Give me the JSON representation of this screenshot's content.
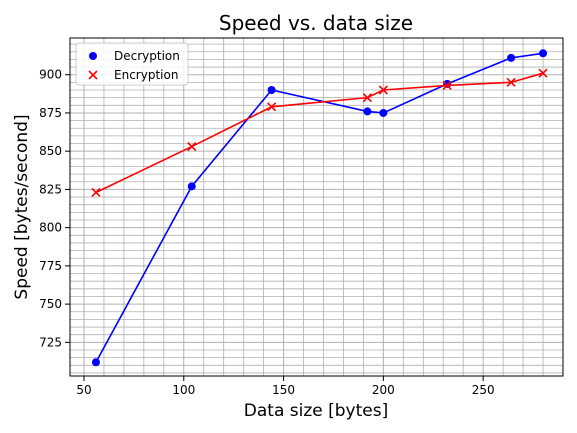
{
  "chart_data": {
    "type": "line",
    "title": "Speed vs. data size",
    "xlabel": "Data size [bytes]",
    "ylabel": "Speed [bytes/second]",
    "xlim": [
      43,
      290
    ],
    "ylim": [
      703,
      924
    ],
    "xticks": [
      50,
      100,
      150,
      200,
      250
    ],
    "yticks": [
      725,
      750,
      775,
      800,
      825,
      850,
      875,
      900
    ],
    "grid": true,
    "legend_position": "top-left",
    "series": [
      {
        "name": "Decryption",
        "color": "#0000ff",
        "marker": "circle",
        "x": [
          56,
          104,
          144,
          192,
          200,
          232,
          264,
          280
        ],
        "y": [
          712,
          827,
          890,
          876,
          875,
          894,
          911,
          914
        ]
      },
      {
        "name": "Encryption",
        "color": "#ff0000",
        "marker": "x",
        "x": [
          56,
          104,
          144,
          192,
          200,
          232,
          264,
          280
        ],
        "y": [
          823,
          853,
          879,
          885,
          890,
          893,
          895,
          901
        ]
      }
    ]
  }
}
